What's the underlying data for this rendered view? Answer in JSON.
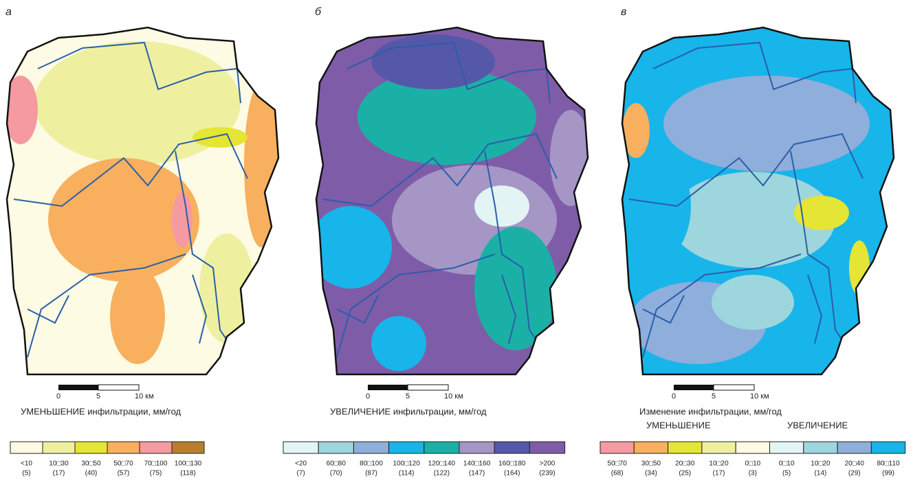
{
  "panels": [
    {
      "letter": "а",
      "scale": [
        "0",
        "5",
        "10 км"
      ],
      "caption": "УМЕНЬШЕНИЕ инфильтрации, мм/год",
      "legend": [
        {
          "color": "#fdfbe3",
          "range": "<10",
          "count": "(5)"
        },
        {
          "color": "#eef0a0",
          "range": "10□30",
          "count": "(17)"
        },
        {
          "color": "#e5e535",
          "range": "30□50",
          "count": "(40)"
        },
        {
          "color": "#f8b05e",
          "range": "50□70",
          "count": "(57)"
        },
        {
          "color": "#f49aa0",
          "range": "70□100",
          "count": "(75)"
        },
        {
          "color": "#b87e2c",
          "range": "100□130",
          "count": "(118)"
        }
      ]
    },
    {
      "letter": "б",
      "scale": [
        "0",
        "5",
        "10 км"
      ],
      "caption": "УВЕЛИЧЕНИЕ инфильтрации, мм/год",
      "legend": [
        {
          "color": "#e2f4f4",
          "range": "<20",
          "count": "(7)"
        },
        {
          "color": "#9dd6dc",
          "range": "60□80",
          "count": "(70)"
        },
        {
          "color": "#8eaedc",
          "range": "80□100",
          "count": "(87)"
        },
        {
          "color": "#17b5ea",
          "range": "100□120",
          "count": "(114)"
        },
        {
          "color": "#1bb0a6",
          "range": "120□140",
          "count": "(122)"
        },
        {
          "color": "#a596c6",
          "range": "140□160",
          "count": "(147)"
        },
        {
          "color": "#5558a8",
          "range": "160□180",
          "count": "(164)"
        },
        {
          "color": "#7f5ca8",
          "range": ">200",
          "count": "(239)"
        }
      ]
    },
    {
      "letter": "в",
      "scale": [
        "0",
        "5",
        "10 км"
      ],
      "caption": "Изменение инфильтрации, мм/год",
      "sub": [
        "УМЕНЬШЕНИЕ",
        "УВЕЛИЧЕНИЕ"
      ],
      "legend": [
        {
          "color": "#f49aa0",
          "range": "50□70",
          "count": "(68)"
        },
        {
          "color": "#f8b05e",
          "range": "30□50",
          "count": "(34)"
        },
        {
          "color": "#e5e535",
          "range": "20□30",
          "count": "(25)"
        },
        {
          "color": "#eef0a0",
          "range": "10□20",
          "count": "(17)"
        },
        {
          "color": "#fdfbe3",
          "range": "0□10",
          "count": "(3)"
        },
        {
          "color": "#e2f4f4",
          "range": "0□10",
          "count": "(5)"
        },
        {
          "color": "#9dd6dc",
          "range": "10□20",
          "count": "(14)"
        },
        {
          "color": "#8eaedc",
          "range": "20□40",
          "count": "(29)"
        },
        {
          "color": "#17b5ea",
          "range": "80□110",
          "count": "(99)"
        }
      ]
    }
  ]
}
